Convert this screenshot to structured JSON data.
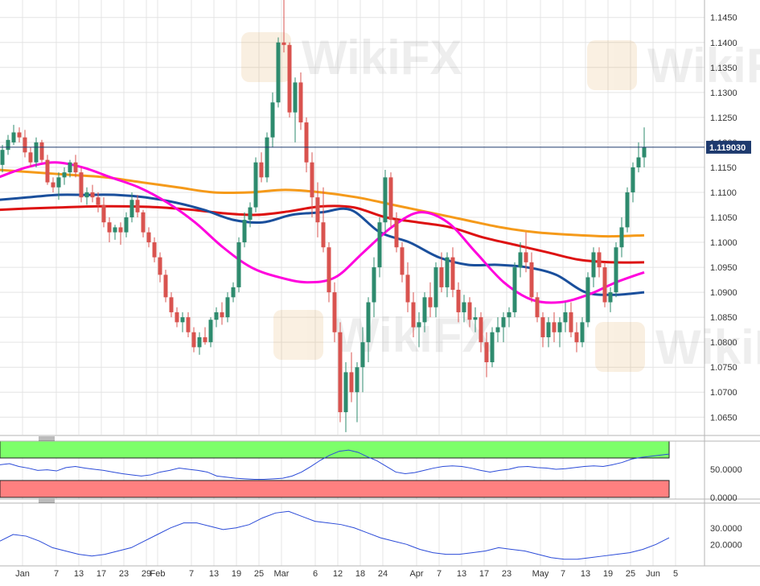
{
  "chart_data": {
    "type": "candlestick",
    "instrument_price": "1.119030",
    "price_axis": {
      "min": 1.0615,
      "max": 1.1485,
      "ticks": [
        "1.1450",
        "1.1400",
        "1.1350",
        "1.1300",
        "1.1250",
        "1.1200",
        "1.1150",
        "1.1100",
        "1.1050",
        "1.1000",
        "1.0950",
        "1.0900",
        "1.0850",
        "1.0800",
        "1.0750",
        "1.0700",
        "1.0650"
      ],
      "tick_values": [
        1.145,
        1.14,
        1.135,
        1.13,
        1.125,
        1.12,
        1.115,
        1.11,
        1.105,
        1.1,
        1.095,
        1.09,
        1.085,
        1.08,
        1.075,
        1.07,
        1.065
      ]
    },
    "date_axis": {
      "labels": [
        "Jan",
        "7",
        "13",
        "17",
        "23",
        "29",
        "Feb",
        "7",
        "13",
        "19",
        "25",
        "Mar",
        "6",
        "12",
        "18",
        "24",
        "Apr",
        "7",
        "13",
        "17",
        "23",
        "May",
        "7",
        "13",
        "19",
        "25",
        "Jun",
        "5"
      ],
      "label_index": [
        0,
        6,
        10,
        14,
        18,
        22,
        24,
        30,
        34,
        38,
        42,
        46,
        52,
        56,
        60,
        64,
        70,
        74,
        78,
        82,
        86,
        92,
        96,
        100,
        104,
        108,
        112,
        116
      ]
    },
    "candles": [
      [
        1.1155,
        1.1195,
        1.114,
        1.1185
      ],
      [
        1.1185,
        1.1215,
        1.1175,
        1.1205
      ],
      [
        1.12,
        1.1235,
        1.1195,
        1.122
      ],
      [
        1.122,
        1.123,
        1.12,
        1.121
      ],
      [
        1.121,
        1.1225,
        1.117,
        1.118
      ],
      [
        1.118,
        1.119,
        1.115,
        1.116
      ],
      [
        1.116,
        1.121,
        1.115,
        1.12
      ],
      [
        1.12,
        1.1205,
        1.116,
        1.1165
      ],
      [
        1.1165,
        1.1175,
        1.1115,
        1.112
      ],
      [
        1.112,
        1.113,
        1.11,
        1.111
      ],
      [
        1.111,
        1.114,
        1.1085,
        1.113
      ],
      [
        1.113,
        1.115,
        1.1115,
        1.114
      ],
      [
        1.114,
        1.1165,
        1.113,
        1.116
      ],
      [
        1.116,
        1.1175,
        1.113,
        1.114
      ],
      [
        1.114,
        1.115,
        1.108,
        1.109
      ],
      [
        1.109,
        1.111,
        1.1075,
        1.11
      ],
      [
        1.11,
        1.1115,
        1.108,
        1.109
      ],
      [
        1.109,
        1.11,
        1.106,
        1.1075
      ],
      [
        1.1075,
        1.109,
        1.103,
        1.104
      ],
      [
        1.104,
        1.105,
        1.1,
        1.102
      ],
      [
        1.102,
        1.1035,
        1.1005,
        1.103
      ],
      [
        1.103,
        1.104,
        1.0995,
        1.102
      ],
      [
        1.102,
        1.106,
        1.101,
        1.105
      ],
      [
        1.105,
        1.11,
        1.104,
        1.1085
      ],
      [
        1.1085,
        1.1095,
        1.105,
        1.106
      ],
      [
        1.106,
        1.1065,
        1.101,
        1.102
      ],
      [
        1.102,
        1.103,
        1.099,
        1.1
      ],
      [
        1.1,
        1.101,
        1.096,
        1.097
      ],
      [
        1.097,
        1.098,
        1.092,
        1.0935
      ],
      [
        1.0935,
        1.0945,
        1.088,
        1.089
      ],
      [
        1.089,
        1.09,
        1.085,
        1.086
      ],
      [
        1.086,
        1.087,
        1.083,
        1.084
      ],
      [
        1.084,
        1.086,
        1.082,
        1.085
      ],
      [
        1.085,
        1.086,
        1.081,
        1.082
      ],
      [
        1.082,
        1.083,
        1.078,
        1.079
      ],
      [
        1.079,
        1.082,
        1.0775,
        1.081
      ],
      [
        1.081,
        1.083,
        1.0795,
        1.08
      ],
      [
        1.08,
        1.085,
        1.079,
        1.0845
      ],
      [
        1.0845,
        1.087,
        1.083,
        1.086
      ],
      [
        1.086,
        1.088,
        1.0835,
        1.085
      ],
      [
        1.085,
        1.09,
        1.084,
        1.089
      ],
      [
        1.089,
        1.092,
        1.088,
        1.091
      ],
      [
        1.091,
        1.101,
        1.09,
        1.1
      ],
      [
        1.1,
        1.106,
        1.099,
        1.1045
      ],
      [
        1.1045,
        1.108,
        1.103,
        1.107
      ],
      [
        1.107,
        1.117,
        1.106,
        1.116
      ],
      [
        1.116,
        1.118,
        1.112,
        1.113
      ],
      [
        1.113,
        1.122,
        1.112,
        1.121
      ],
      [
        1.121,
        1.13,
        1.119,
        1.128
      ],
      [
        1.128,
        1.141,
        1.127,
        1.14
      ],
      [
        1.14,
        1.1495,
        1.138,
        1.1395
      ],
      [
        1.1395,
        1.14,
        1.125,
        1.126
      ],
      [
        1.126,
        1.133,
        1.12,
        1.132
      ],
      [
        1.132,
        1.134,
        1.1225,
        1.124
      ],
      [
        1.124,
        1.125,
        1.114,
        1.116
      ],
      [
        1.116,
        1.118,
        1.105,
        1.109
      ],
      [
        1.109,
        1.112,
        1.101,
        1.104
      ],
      [
        1.104,
        1.111,
        1.098,
        1.099
      ],
      [
        1.099,
        1.1,
        1.088,
        1.09
      ],
      [
        1.09,
        1.092,
        1.08,
        1.082
      ],
      [
        1.082,
        1.084,
        1.064,
        1.066
      ],
      [
        1.066,
        1.076,
        1.062,
        1.074
      ],
      [
        1.074,
        1.078,
        1.068,
        1.07
      ],
      [
        1.07,
        1.076,
        1.064,
        1.075
      ],
      [
        1.075,
        1.083,
        1.07,
        1.08
      ],
      [
        1.08,
        1.089,
        1.076,
        1.088
      ],
      [
        1.088,
        1.097,
        1.085,
        1.095
      ],
      [
        1.095,
        1.105,
        1.093,
        1.104
      ],
      [
        1.104,
        1.1145,
        1.102,
        1.113
      ],
      [
        1.113,
        1.114,
        1.103,
        1.1045
      ],
      [
        1.1045,
        1.106,
        1.098,
        1.099
      ],
      [
        1.099,
        1.1,
        1.092,
        1.0935
      ],
      [
        1.0935,
        1.096,
        1.086,
        1.088
      ],
      [
        1.088,
        1.09,
        1.081,
        1.083
      ],
      [
        1.083,
        1.086,
        1.079,
        1.084
      ],
      [
        1.084,
        1.09,
        1.082,
        1.089
      ],
      [
        1.089,
        1.092,
        1.085,
        1.087
      ],
      [
        1.087,
        1.096,
        1.085,
        1.095
      ],
      [
        1.095,
        1.098,
        1.09,
        1.091
      ],
      [
        1.091,
        1.098,
        1.089,
        1.097
      ],
      [
        1.097,
        1.099,
        1.089,
        1.0905
      ],
      [
        1.0905,
        1.092,
        1.084,
        1.086
      ],
      [
        1.086,
        1.0895,
        1.084,
        1.088
      ],
      [
        1.088,
        1.089,
        1.083,
        1.0845
      ],
      [
        1.0845,
        1.087,
        1.082,
        1.085
      ],
      [
        1.085,
        1.086,
        1.078,
        1.08
      ],
      [
        1.08,
        1.082,
        1.073,
        1.076
      ],
      [
        1.076,
        1.083,
        1.075,
        1.082
      ],
      [
        1.082,
        1.085,
        1.08,
        1.083
      ],
      [
        1.083,
        1.086,
        1.08,
        1.085
      ],
      [
        1.085,
        1.087,
        1.083,
        1.086
      ],
      [
        1.086,
        1.096,
        1.085,
        1.095
      ],
      [
        1.095,
        1.1,
        1.093,
        1.098
      ],
      [
        1.098,
        1.102,
        1.094,
        1.096
      ],
      [
        1.096,
        1.098,
        1.088,
        1.089
      ],
      [
        1.089,
        1.09,
        1.084,
        1.085
      ],
      [
        1.085,
        1.086,
        1.079,
        1.081
      ],
      [
        1.081,
        1.085,
        1.079,
        1.084
      ],
      [
        1.084,
        1.086,
        1.08,
        1.082
      ],
      [
        1.082,
        1.085,
        1.079,
        1.084
      ],
      [
        1.084,
        1.088,
        1.082,
        1.086
      ],
      [
        1.086,
        1.088,
        1.081,
        1.082
      ],
      [
        1.082,
        1.084,
        1.078,
        1.08
      ],
      [
        1.08,
        1.085,
        1.079,
        1.084
      ],
      [
        1.084,
        1.094,
        1.083,
        1.093
      ],
      [
        1.093,
        1.099,
        1.091,
        1.098
      ],
      [
        1.098,
        1.099,
        1.093,
        1.095
      ],
      [
        1.095,
        1.096,
        1.087,
        1.088
      ],
      [
        1.088,
        1.091,
        1.086,
        1.09
      ],
      [
        1.09,
        1.1,
        1.089,
        1.099
      ],
      [
        1.099,
        1.105,
        1.097,
        1.103
      ],
      [
        1.103,
        1.111,
        1.102,
        1.11
      ],
      [
        1.11,
        1.116,
        1.108,
        1.115
      ],
      [
        1.115,
        1.12,
        1.114,
        1.117
      ],
      [
        1.117,
        1.123,
        1.115,
        1.119
      ]
    ],
    "moving_averages": [
      {
        "color": "#ff00dd",
        "values": [
          1.113,
          1.115,
          1.116,
          1.115,
          1.113,
          1.111,
          1.108,
          1.104,
          1.099,
          1.095,
          1.093,
          1.092,
          1.093,
          1.098,
          1.103,
          1.106,
          1.104,
          1.098,
          1.092,
          1.0885,
          1.088,
          1.0895,
          1.092,
          1.094
        ]
      },
      {
        "color": "#1a4f9c",
        "values": [
          1.1085,
          1.109,
          1.1095,
          1.1095,
          1.1095,
          1.109,
          1.108,
          1.1065,
          1.1045,
          1.104,
          1.1055,
          1.106,
          1.1065,
          1.102,
          1.1,
          1.097,
          1.0955,
          1.0955,
          1.095,
          1.0935,
          1.09,
          1.0895,
          1.09
        ]
      },
      {
        "color": "#dd1111",
        "values": [
          1.1065,
          1.1068,
          1.107,
          1.1072,
          1.1072,
          1.107,
          1.1065,
          1.1058,
          1.1055,
          1.1062,
          1.1072,
          1.107,
          1.105,
          1.104,
          1.103,
          1.101,
          1.0995,
          1.098,
          1.0965,
          1.096,
          1.096
        ]
      },
      {
        "color": "#f59a1a",
        "values": [
          1.1145,
          1.114,
          1.1135,
          1.113,
          1.112,
          1.111,
          1.11,
          1.11,
          1.1105,
          1.11,
          1.109,
          1.1075,
          1.106,
          1.1045,
          1.103,
          1.102,
          1.1015,
          1.1012,
          1.1014
        ]
      }
    ],
    "indicator_1": {
      "ticks": [
        "50.0000",
        "0.0000"
      ],
      "tick_values": [
        50,
        0
      ],
      "ymin": -3,
      "ymax": 100,
      "overbought": 70,
      "oversold": 30,
      "overbought_color": "#7dff6a",
      "oversold_color": "#ff8080",
      "line_color": "#2b4bd8",
      "values": [
        58,
        60,
        55,
        52,
        48,
        49,
        47,
        53,
        55,
        52,
        50,
        48,
        45,
        42,
        40,
        38,
        40,
        45,
        48,
        52,
        50,
        48,
        45,
        38,
        36,
        34,
        33,
        32,
        32,
        33,
        34,
        38,
        45,
        55,
        66,
        75,
        82,
        84,
        80,
        72,
        65,
        55,
        45,
        42,
        44,
        48,
        52,
        55,
        56,
        55,
        52,
        48,
        45,
        48,
        50,
        54,
        55,
        53,
        52,
        50,
        51,
        53,
        55,
        56,
        55,
        58,
        62,
        68,
        71,
        73,
        75,
        77
      ]
    },
    "indicator_2": {
      "ticks": [
        "30.0000",
        "20.0000"
      ],
      "tick_values": [
        30,
        20
      ],
      "ymin": 7,
      "ymax": 45,
      "line_color": "#2b4bd8",
      "values": [
        22,
        26,
        25,
        22,
        18,
        16,
        14,
        13,
        14,
        16,
        18,
        22,
        26,
        30,
        33,
        33,
        31,
        29,
        30,
        32,
        36,
        39,
        40,
        37,
        34,
        33,
        32,
        30,
        27,
        24,
        22,
        20,
        17,
        15,
        14,
        14,
        15,
        16,
        18,
        17,
        16,
        14,
        12,
        11,
        11,
        12,
        13,
        14,
        15,
        17,
        20,
        24
      ]
    },
    "colors": {
      "bull": "#2e8b6e",
      "bear": "#d9534f",
      "price_line": "#1e3a6e",
      "grid": "#e4e4e4"
    },
    "watermark": "WikiFX"
  }
}
